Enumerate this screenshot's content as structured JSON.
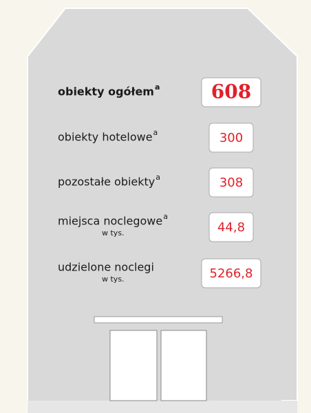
{
  "rows": [
    {
      "label": "obiekty ogółem",
      "note": "a",
      "value": "608"
    },
    {
      "label": "obiekty hotelowe",
      "note": "a",
      "value": "300"
    },
    {
      "label": "pozostałe obiekty",
      "note": "a",
      "value": "308"
    },
    {
      "label": "miejsca noclegowe",
      "note": "a",
      "unit": "w tys.",
      "value": "44,8"
    },
    {
      "label": "udzielone noclegi",
      "unit": "w tys.",
      "value": "5266,8"
    }
  ]
}
